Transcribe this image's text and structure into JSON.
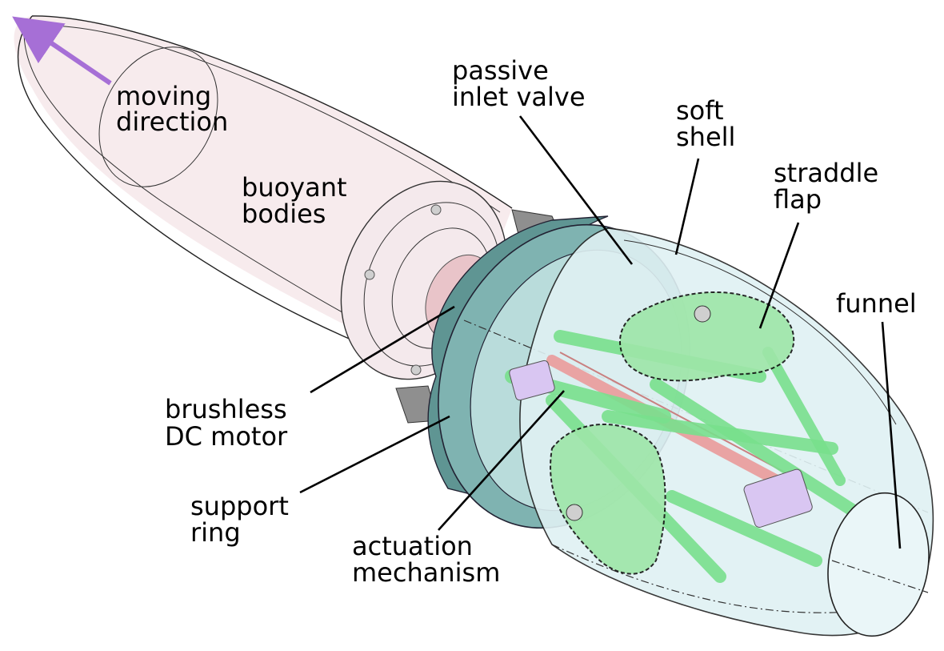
{
  "labels": {
    "moving_direction": [
      "moving",
      "direction"
    ],
    "buoyant_bodies": [
      "buoyant",
      "bodies"
    ],
    "passive_inlet_valve": [
      "passive",
      "inlet valve"
    ],
    "soft_shell": [
      "soft",
      "shell"
    ],
    "straddle_flap": [
      "straddle",
      "flap"
    ],
    "funnel": [
      "funnel"
    ],
    "brushless_dc_motor": [
      "brushless",
      "DC motor"
    ],
    "support_ring": [
      "support",
      "ring"
    ],
    "actuation_mechanism": [
      "actuation",
      "mechanism"
    ]
  },
  "colors": {
    "arrow": "#a66fd6",
    "nose_fill": "#f6e7ea",
    "ring_fill": "#7fb3b1",
    "ring_dark": "#5f9593",
    "shell_fill": "#dff1f3",
    "link_green": "#79e08d",
    "flap_green": "#9ee6a8",
    "motor_blue": "#a9d6e8",
    "rod_red": "#e9a3a3",
    "joint_purple": "#d9c6f2"
  }
}
